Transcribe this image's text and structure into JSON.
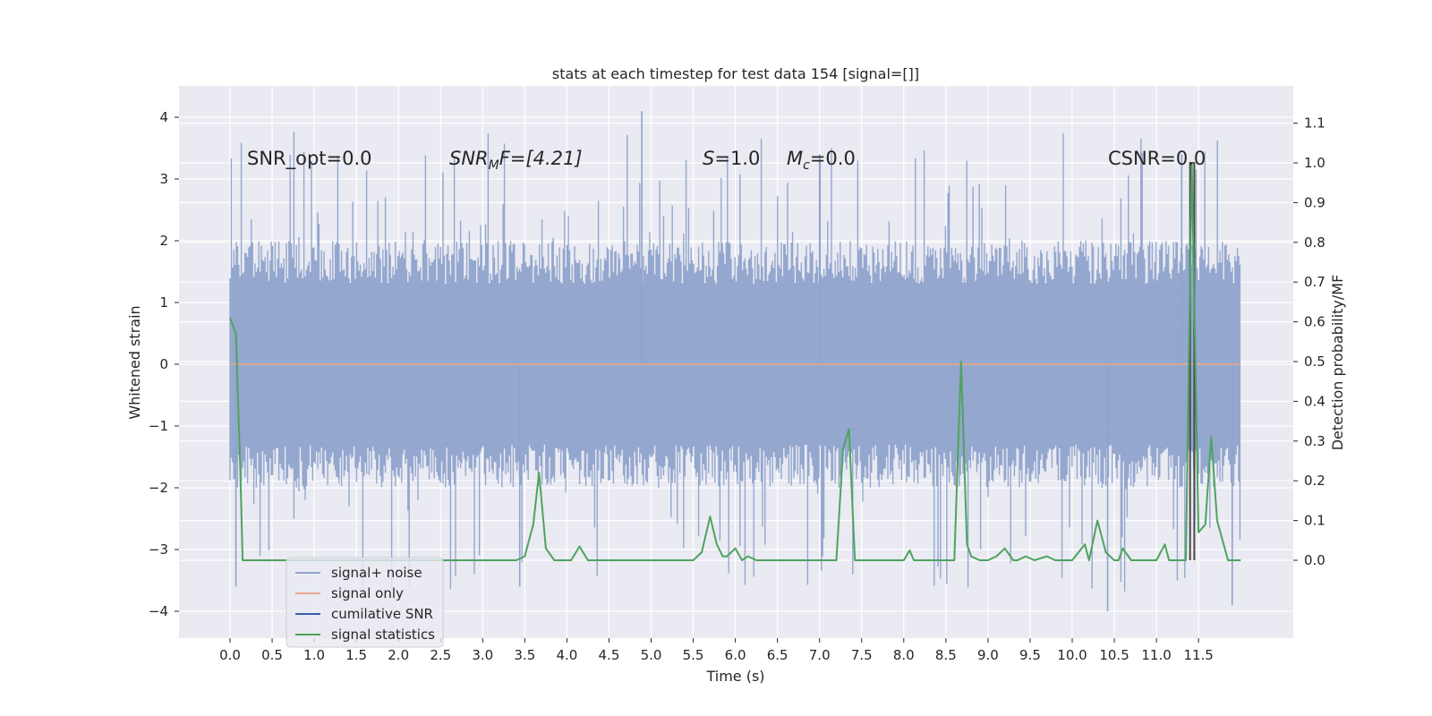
{
  "chart_data": {
    "type": "line",
    "title": "stats at each timestep for test data 154 [signal=[]]",
    "xlabel": "Time (s)",
    "ylabel": "Whitened strain",
    "ylabel_right": "Detection probability/MF",
    "xlim": [
      -0.58,
      12.6
    ],
    "ylim": [
      -4.4,
      4.5
    ],
    "ylim_right": [
      -0.2,
      1.2
    ],
    "x_ticks": [
      "0.0",
      "0.5",
      "1.0",
      "1.5",
      "2.0",
      "2.5",
      "3.0",
      "3.5",
      "4.0",
      "4.5",
      "5.0",
      "5.5",
      "6.0",
      "6.5",
      "7.0",
      "7.5",
      "8.0",
      "8.5",
      "9.0",
      "9.5",
      "10.0",
      "10.5",
      "11.0",
      "11.5"
    ],
    "y_ticks": [
      "4",
      "3",
      "2",
      "1",
      "0",
      "−1",
      "−2",
      "−3",
      "−4"
    ],
    "y_ticks_right": [
      "1.1",
      "1.0",
      "0.9",
      "0.8",
      "0.7",
      "0.6",
      "0.5",
      "0.4",
      "0.3",
      "0.2",
      "0.1",
      "0.0"
    ],
    "annotations": {
      "snr_opt": "SNR_opt=0.0",
      "snr_mf_main": "SNR",
      "snr_mf_sub": "M",
      "snr_mf_rest": "F=[4.21]",
      "s_main": "S",
      "s_rest": "=1.0",
      "mc_main": "M",
      "mc_sub": "c",
      "mc_rest": "=0.0",
      "csnr": "CSNR=0.0"
    },
    "legend": {
      "placement": "lower-left",
      "entries": [
        {
          "label": "signal+ noise",
          "color": "#8fa3cb"
        },
        {
          "label": "signal only",
          "color": "#e9a98c"
        },
        {
          "label": "cumilative SNR",
          "color": "#3b5ea8"
        },
        {
          "label": "signal statistics",
          "color": "#4ea35f"
        }
      ]
    },
    "series": [
      {
        "name": "signal+ noise",
        "axis": "left",
        "color": "#8fa3cb",
        "note_rendering": "dense noise band, approx range",
        "x_range": [
          0.0,
          12.0
        ],
        "typical_range": [
          -2.0,
          2.0
        ],
        "extreme_range": [
          -4.0,
          4.1
        ]
      },
      {
        "name": "signal only",
        "axis": "left",
        "color": "#e9a98c",
        "x": [
          0.0,
          12.0
        ],
        "y": [
          0.0,
          0.0
        ]
      },
      {
        "name": "cumilative SNR",
        "axis": "right",
        "color": "#3b5ea8",
        "x": [
          11.4,
          11.4,
          11.45,
          11.45
        ],
        "y": [
          0.0,
          1.0,
          1.0,
          0.0
        ]
      },
      {
        "name": "signal statistics",
        "axis": "right",
        "color": "#4ea35f",
        "x": [
          0.0,
          0.07,
          0.12,
          0.15,
          0.2,
          3.2,
          3.4,
          3.5,
          3.6,
          3.67,
          3.75,
          3.85,
          4.05,
          4.15,
          4.25,
          4.35,
          5.5,
          5.6,
          5.7,
          5.78,
          5.85,
          5.9,
          6.0,
          6.08,
          6.15,
          6.25,
          6.5,
          7.2,
          7.28,
          7.35,
          7.42,
          7.5,
          8.0,
          8.07,
          8.12,
          8.5,
          8.6,
          8.68,
          8.75,
          8.8,
          8.9,
          9.0,
          9.1,
          9.2,
          9.3,
          9.35,
          9.45,
          9.55,
          9.7,
          9.8,
          10.0,
          10.15,
          10.2,
          10.3,
          10.4,
          10.5,
          10.55,
          10.6,
          10.7,
          11.0,
          11.1,
          11.15,
          11.35,
          11.42,
          11.5,
          11.58,
          11.65,
          11.72,
          11.85,
          12.0
        ],
        "y": [
          0.61,
          0.57,
          0.24,
          0.0,
          0.0,
          0.0,
          0.0,
          0.01,
          0.09,
          0.22,
          0.03,
          0.0,
          0.0,
          0.035,
          0.0,
          0.0,
          0.0,
          0.02,
          0.11,
          0.04,
          0.01,
          0.01,
          0.03,
          0.0,
          0.01,
          0.0,
          0.0,
          0.0,
          0.28,
          0.33,
          0.0,
          0.0,
          0.0,
          0.025,
          0.0,
          0.0,
          0.0,
          0.5,
          0.04,
          0.01,
          0.0,
          0.0,
          0.01,
          0.03,
          0.0,
          0.0,
          0.01,
          0.0,
          0.01,
          0.0,
          0.0,
          0.04,
          0.0,
          0.1,
          0.02,
          0.0,
          0.0,
          0.03,
          0.0,
          0.0,
          0.04,
          0.0,
          0.0,
          1.0,
          0.07,
          0.09,
          0.31,
          0.1,
          0.0,
          0.0
        ]
      }
    ]
  }
}
